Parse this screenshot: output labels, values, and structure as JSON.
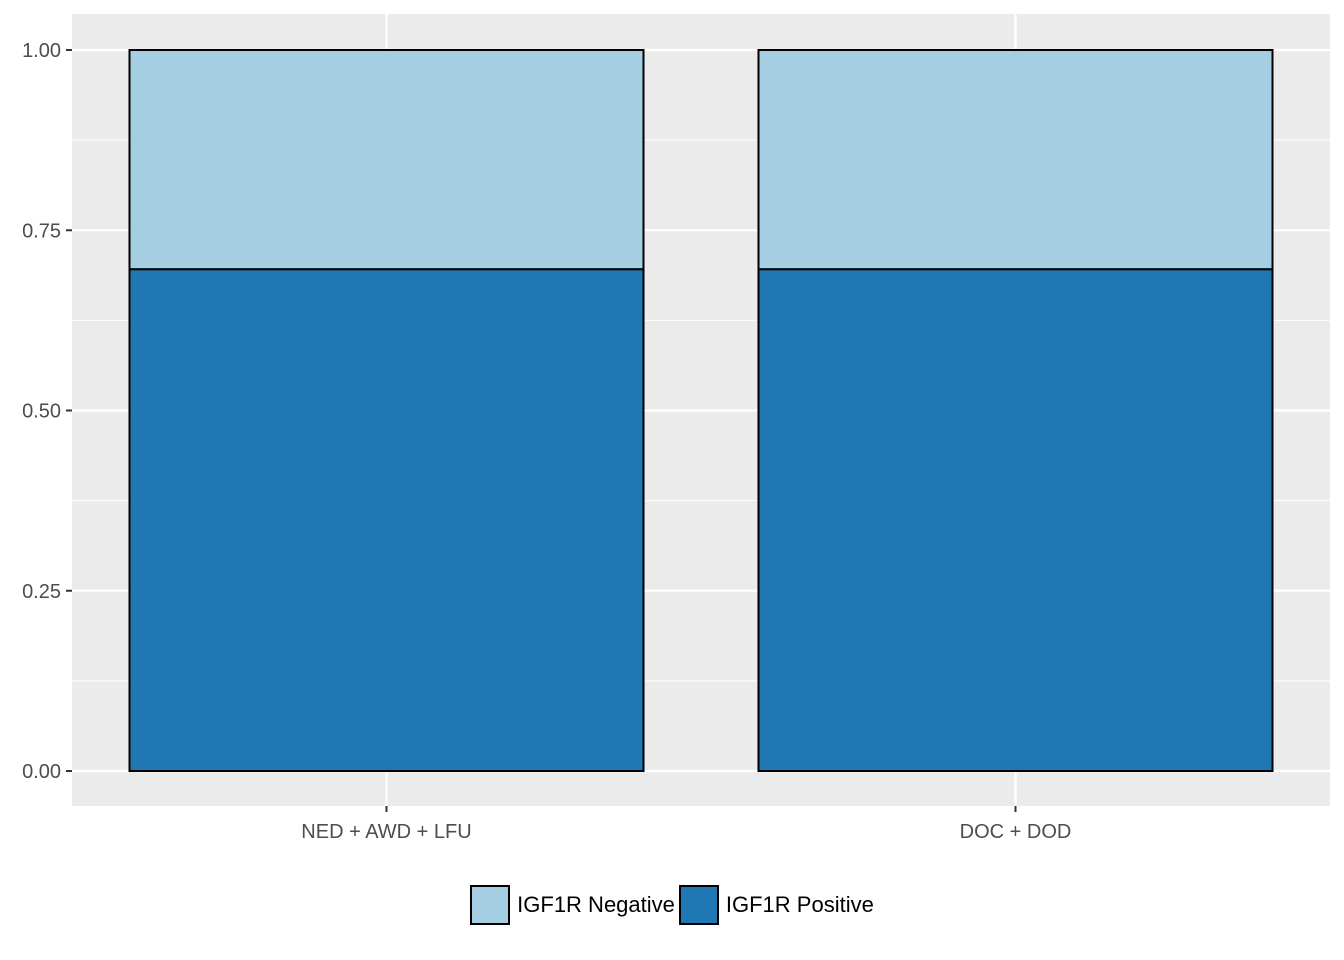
{
  "chart_data": {
    "type": "bar",
    "stacked": true,
    "categories": [
      "NED + AWD + LFU",
      "DOC + DOD"
    ],
    "series": [
      {
        "name": "IGF1R Positive",
        "values": [
          0.696,
          0.696
        ],
        "color": "#1F78B4"
      },
      {
        "name": "IGF1R Negative",
        "values": [
          0.304,
          0.304
        ],
        "color": "#A6CEE3"
      }
    ],
    "ylim": [
      0,
      1
    ],
    "y_ticks": [
      "0.00",
      "0.25",
      "0.50",
      "0.75",
      "1.00"
    ],
    "y_tick_values": [
      0,
      0.25,
      0.5,
      0.75,
      1.0
    ],
    "xlabel": "",
    "ylabel": "",
    "title": "",
    "grid": true,
    "legend_position": "bottom",
    "legend": [
      {
        "label": "IGF1R Negative",
        "color": "#A6CEE3"
      },
      {
        "label": "IGF1R Positive",
        "color": "#1F78B4"
      }
    ],
    "panel_background": "#EBEBEB",
    "grid_color": "#FFFFFF"
  }
}
